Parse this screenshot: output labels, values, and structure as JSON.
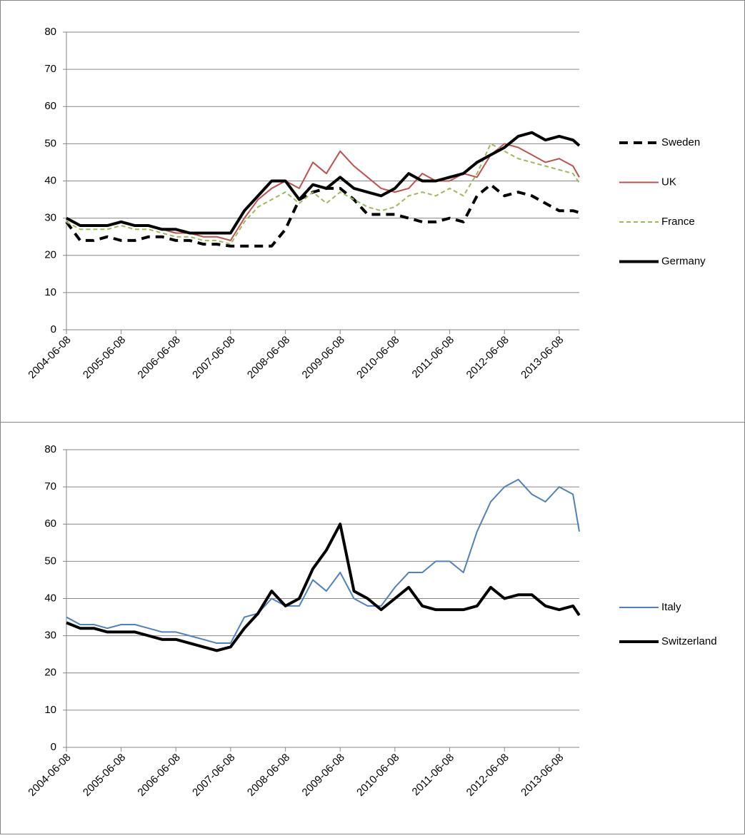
{
  "chart_data": [
    {
      "type": "line",
      "x": [
        "2004-06-08",
        "2004-09-08",
        "2004-12-08",
        "2005-03-08",
        "2005-06-08",
        "2005-09-08",
        "2005-12-08",
        "2006-03-08",
        "2006-06-08",
        "2006-09-08",
        "2006-12-08",
        "2007-03-08",
        "2007-06-08",
        "2007-09-08",
        "2007-12-08",
        "2008-03-08",
        "2008-06-08",
        "2008-09-08",
        "2008-12-08",
        "2009-03-08",
        "2009-06-08",
        "2009-09-08",
        "2009-12-08",
        "2010-03-08",
        "2010-06-08",
        "2010-09-08",
        "2010-12-08",
        "2011-03-08",
        "2011-06-08",
        "2011-09-08",
        "2011-12-08",
        "2012-03-08",
        "2012-06-08",
        "2012-09-08",
        "2012-12-08",
        "2013-03-08",
        "2013-06-08",
        "2013-09-08",
        "2013-10-20"
      ],
      "xlim": [
        "2004-06-08",
        "2013-10-20"
      ],
      "xticks": [
        "2004-06-08",
        "2005-06-08",
        "2006-06-08",
        "2007-06-08",
        "2008-06-08",
        "2009-06-08",
        "2010-06-08",
        "2011-06-08",
        "2012-06-08",
        "2013-06-08"
      ],
      "ylim": [
        0,
        80
      ],
      "yticks": [
        0,
        10,
        20,
        30,
        40,
        50,
        60,
        70,
        80
      ],
      "grid": true,
      "legend": "right",
      "series": [
        {
          "name": "Sweden",
          "color": "#000000",
          "line_style": "dashed",
          "line_width": 4,
          "values": [
            29,
            24,
            24,
            25,
            24,
            24,
            25,
            25,
            24,
            24,
            23,
            23,
            22.5,
            22.5,
            22.5,
            22.5,
            27,
            35,
            37,
            38,
            38,
            35,
            31,
            31,
            31,
            30,
            29,
            29,
            30,
            29,
            36,
            39,
            36,
            37,
            36,
            34,
            32,
            32,
            31.5
          ]
        },
        {
          "name": "UK",
          "color": "#c0504d",
          "line_style": "solid",
          "line_width": 2,
          "values": [
            30,
            28,
            28,
            28,
            29,
            28,
            28,
            27,
            26,
            26,
            25,
            25,
            24,
            30,
            35,
            38,
            40,
            38,
            45,
            42,
            48,
            44,
            41,
            38,
            37,
            38,
            42,
            40,
            40,
            42,
            41,
            47,
            50,
            49,
            47,
            45,
            46,
            44,
            41
          ]
        },
        {
          "name": "France",
          "color": "#9bbb59",
          "line_style": "dashed",
          "line_width": 2,
          "values": [
            29,
            27,
            27,
            27,
            28,
            27,
            27,
            26,
            25,
            25,
            24,
            24,
            23,
            29,
            33,
            35,
            37,
            34,
            37,
            34,
            37,
            35,
            33,
            32,
            33,
            36,
            37,
            36,
            38,
            36,
            42,
            50,
            48,
            46,
            45,
            44,
            43,
            42,
            39.5
          ]
        },
        {
          "name": "Germany",
          "color": "#000000",
          "line_style": "solid",
          "line_width": 4,
          "values": [
            30,
            28,
            28,
            28,
            29,
            28,
            28,
            27,
            27,
            26,
            26,
            26,
            26,
            32,
            36,
            40,
            40,
            35,
            39,
            38,
            41,
            38,
            37,
            36,
            38,
            42,
            40,
            40,
            41,
            42,
            45,
            47,
            49,
            52,
            53,
            51,
            52,
            51,
            49.5
          ]
        }
      ]
    },
    {
      "type": "line",
      "x": [
        "2004-06-08",
        "2004-09-08",
        "2004-12-08",
        "2005-03-08",
        "2005-06-08",
        "2005-09-08",
        "2005-12-08",
        "2006-03-08",
        "2006-06-08",
        "2006-09-08",
        "2006-12-08",
        "2007-03-08",
        "2007-06-08",
        "2007-09-08",
        "2007-12-08",
        "2008-03-08",
        "2008-06-08",
        "2008-09-08",
        "2008-12-08",
        "2009-03-08",
        "2009-06-08",
        "2009-09-08",
        "2009-12-08",
        "2010-03-08",
        "2010-06-08",
        "2010-09-08",
        "2010-12-08",
        "2011-03-08",
        "2011-06-08",
        "2011-09-08",
        "2011-12-08",
        "2012-03-08",
        "2012-06-08",
        "2012-09-08",
        "2012-12-08",
        "2013-03-08",
        "2013-06-08",
        "2013-09-08",
        "2013-10-20"
      ],
      "xlim": [
        "2004-06-08",
        "2013-10-20"
      ],
      "xticks": [
        "2004-06-08",
        "2005-06-08",
        "2006-06-08",
        "2007-06-08",
        "2008-06-08",
        "2009-06-08",
        "2010-06-08",
        "2011-06-08",
        "2012-06-08",
        "2013-06-08"
      ],
      "ylim": [
        0,
        80
      ],
      "yticks": [
        0,
        10,
        20,
        30,
        40,
        50,
        60,
        70,
        80
      ],
      "grid": true,
      "legend": "right",
      "series": [
        {
          "name": "Italy",
          "color": "#4f81bd",
          "line_style": "solid",
          "line_width": 2,
          "values": [
            35,
            33,
            33,
            32,
            33,
            33,
            32,
            31,
            31,
            30,
            29,
            28,
            28,
            35,
            36,
            40,
            38,
            38,
            45,
            42,
            47,
            40,
            38,
            38,
            43,
            47,
            47,
            50,
            50,
            47,
            58,
            66,
            70,
            72,
            68,
            66,
            70,
            68,
            58
          ]
        },
        {
          "name": "Switzerland",
          "color": "#000000",
          "line_style": "solid",
          "line_width": 4,
          "values": [
            33.5,
            32,
            32,
            31,
            31,
            31,
            30,
            29,
            29,
            28,
            27,
            26,
            27,
            32,
            36,
            42,
            38,
            40,
            48,
            53,
            60,
            42,
            40,
            37,
            40,
            43,
            38,
            37,
            37,
            37,
            38,
            43,
            40,
            41,
            41,
            38,
            37,
            38,
            35.5
          ]
        }
      ]
    }
  ]
}
